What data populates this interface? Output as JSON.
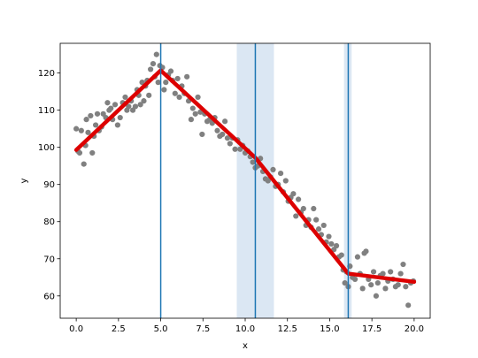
{
  "chart_data": {
    "type": "scatter",
    "title": "",
    "xlabel": "x",
    "ylabel": "y",
    "xlim": [
      -0.95,
      20.95
    ],
    "ylim": [
      54.0,
      128.0
    ],
    "xticks": [
      0.0,
      2.5,
      5.0,
      7.5,
      10.0,
      12.5,
      15.0,
      17.5,
      20.0
    ],
    "xtick_labels": [
      "0.0",
      "2.5",
      "5.0",
      "7.5",
      "10.0",
      "12.5",
      "15.0",
      "17.5",
      "20.0"
    ],
    "yticks": [
      60,
      70,
      80,
      90,
      100,
      110,
      120
    ],
    "ytick_labels": [
      "60",
      "70",
      "80",
      "90",
      "100",
      "110",
      "120"
    ],
    "grid": false,
    "colors": {
      "points": "#808080",
      "fit_line": "#dd0000",
      "breakpoint_line": "#1f77b4",
      "confidence_band": "#dbe7f3"
    },
    "scatter_points": [
      [
        0.0,
        105.0
      ],
      [
        0.1,
        99.0
      ],
      [
        0.2,
        98.5
      ],
      [
        0.3,
        104.5
      ],
      [
        0.45,
        95.5
      ],
      [
        0.55,
        100.5
      ],
      [
        0.6,
        107.5
      ],
      [
        0.7,
        104.0
      ],
      [
        0.85,
        108.5
      ],
      [
        0.95,
        98.5
      ],
      [
        1.05,
        103.0
      ],
      [
        1.15,
        106.0
      ],
      [
        1.25,
        109.0
      ],
      [
        1.35,
        104.5
      ],
      [
        1.5,
        105.5
      ],
      [
        1.6,
        109.0
      ],
      [
        1.75,
        108.0
      ],
      [
        1.85,
        112.0
      ],
      [
        1.95,
        110.0
      ],
      [
        2.05,
        110.5
      ],
      [
        2.15,
        107.5
      ],
      [
        2.3,
        111.5
      ],
      [
        2.45,
        106.0
      ],
      [
        2.6,
        108.0
      ],
      [
        2.75,
        112.0
      ],
      [
        2.9,
        113.5
      ],
      [
        3.0,
        110.0
      ],
      [
        3.1,
        111.0
      ],
      [
        3.25,
        112.5
      ],
      [
        3.35,
        110.0
      ],
      [
        3.5,
        111.0
      ],
      [
        3.6,
        115.5
      ],
      [
        3.7,
        114.0
      ],
      [
        3.8,
        111.5
      ],
      [
        3.9,
        117.5
      ],
      [
        4.0,
        112.5
      ],
      [
        4.1,
        116.5
      ],
      [
        4.2,
        118.0
      ],
      [
        4.3,
        114.0
      ],
      [
        4.4,
        121.0
      ],
      [
        4.55,
        122.5
      ],
      [
        4.65,
        119.0
      ],
      [
        4.75,
        125.0
      ],
      [
        4.85,
        117.5
      ],
      [
        4.95,
        122.0
      ],
      [
        5.1,
        121.5
      ],
      [
        5.2,
        115.5
      ],
      [
        5.3,
        117.5
      ],
      [
        5.45,
        119.5
      ],
      [
        5.6,
        120.5
      ],
      [
        5.7,
        118.0
      ],
      [
        5.85,
        114.5
      ],
      [
        6.0,
        118.5
      ],
      [
        6.1,
        113.5
      ],
      [
        6.25,
        116.5
      ],
      [
        6.4,
        114.5
      ],
      [
        6.55,
        119.0
      ],
      [
        6.65,
        112.5
      ],
      [
        6.8,
        107.5
      ],
      [
        6.9,
        110.5
      ],
      [
        7.05,
        109.0
      ],
      [
        7.2,
        113.5
      ],
      [
        7.35,
        109.5
      ],
      [
        7.45,
        103.5
      ],
      [
        7.6,
        109.0
      ],
      [
        7.75,
        107.0
      ],
      [
        7.9,
        107.5
      ],
      [
        8.05,
        106.5
      ],
      [
        8.2,
        108.0
      ],
      [
        8.35,
        104.5
      ],
      [
        8.5,
        103.0
      ],
      [
        8.65,
        103.5
      ],
      [
        8.8,
        107.0
      ],
      [
        8.95,
        102.5
      ],
      [
        9.1,
        101.0
      ],
      [
        9.25,
        102.5
      ],
      [
        9.4,
        99.5
      ],
      [
        9.55,
        102.0
      ],
      [
        9.7,
        99.5
      ],
      [
        9.85,
        100.5
      ],
      [
        10.0,
        98.5
      ],
      [
        10.15,
        99.0
      ],
      [
        10.3,
        97.5
      ],
      [
        10.45,
        96.0
      ],
      [
        10.6,
        94.5
      ],
      [
        10.75,
        95.0
      ],
      [
        10.9,
        97.0
      ],
      [
        11.05,
        93.5
      ],
      [
        11.2,
        91.5
      ],
      [
        11.35,
        91.0
      ],
      [
        11.5,
        92.0
      ],
      [
        11.65,
        94.0
      ],
      [
        11.8,
        89.5
      ],
      [
        11.95,
        90.0
      ],
      [
        12.1,
        93.0
      ],
      [
        12.25,
        88.0
      ],
      [
        12.4,
        91.0
      ],
      [
        12.55,
        85.5
      ],
      [
        12.7,
        86.5
      ],
      [
        12.85,
        87.5
      ],
      [
        13.0,
        81.5
      ],
      [
        13.15,
        86.0
      ],
      [
        13.3,
        82.5
      ],
      [
        13.45,
        83.5
      ],
      [
        13.6,
        79.0
      ],
      [
        13.75,
        80.5
      ],
      [
        13.9,
        78.5
      ],
      [
        14.05,
        83.5
      ],
      [
        14.2,
        80.5
      ],
      [
        14.35,
        78.0
      ],
      [
        14.5,
        76.5
      ],
      [
        14.65,
        79.0
      ],
      [
        14.8,
        74.5
      ],
      [
        14.95,
        76.0
      ],
      [
        15.1,
        74.0
      ],
      [
        15.25,
        72.5
      ],
      [
        15.4,
        73.5
      ],
      [
        15.55,
        70.5
      ],
      [
        15.7,
        71.0
      ],
      [
        15.8,
        67.0
      ],
      [
        15.9,
        63.5
      ],
      [
        16.0,
        66.5
      ],
      [
        16.1,
        62.5
      ],
      [
        16.2,
        68.0
      ],
      [
        16.35,
        65.0
      ],
      [
        16.5,
        64.5
      ],
      [
        16.65,
        70.5
      ],
      [
        16.8,
        66.0
      ],
      [
        16.95,
        62.0
      ],
      [
        17.05,
        71.5
      ],
      [
        17.15,
        72.0
      ],
      [
        17.3,
        64.5
      ],
      [
        17.45,
        63.0
      ],
      [
        17.6,
        66.5
      ],
      [
        17.75,
        60.0
      ],
      [
        17.85,
        63.5
      ],
      [
        18.0,
        65.5
      ],
      [
        18.15,
        66.0
      ],
      [
        18.3,
        62.0
      ],
      [
        18.45,
        64.0
      ],
      [
        18.6,
        66.5
      ],
      [
        18.75,
        64.5
      ],
      [
        18.9,
        62.5
      ],
      [
        19.05,
        63.0
      ],
      [
        19.2,
        66.0
      ],
      [
        19.35,
        68.5
      ],
      [
        19.5,
        62.5
      ],
      [
        19.65,
        57.5
      ],
      [
        19.8,
        63.5
      ],
      [
        19.95,
        64.0
      ]
    ],
    "fit_line": [
      [
        0.0,
        99.3
      ],
      [
        5.0,
        120.7
      ],
      [
        10.6,
        97.2
      ],
      [
        16.1,
        66.0
      ],
      [
        20.0,
        63.8
      ]
    ],
    "breakpoints": [
      5.0,
      10.6,
      16.1
    ],
    "confidence_bands": [
      [
        9.5,
        11.7
      ],
      [
        15.85,
        16.3
      ]
    ]
  }
}
